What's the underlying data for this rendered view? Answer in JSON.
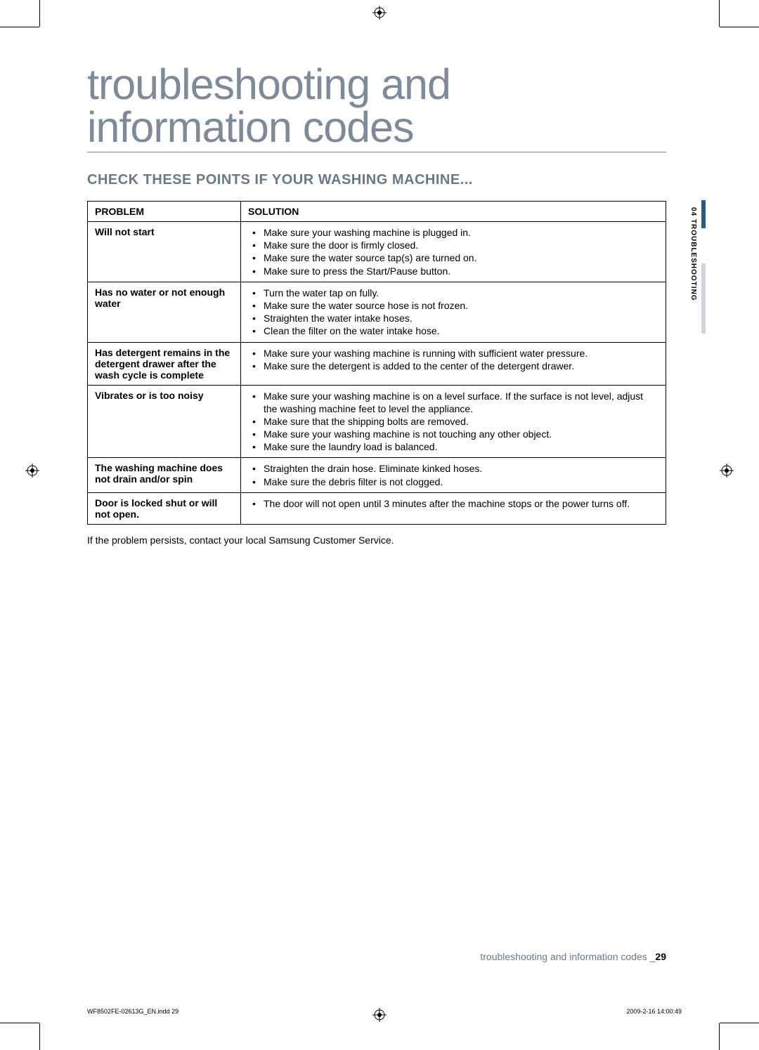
{
  "title_line1": "troubleshooting and",
  "title_line2": "information codes",
  "heading": "CHECK THESE POINTS IF YOUR WASHING MACHINE...",
  "table": {
    "col_problem": "PROBLEM",
    "col_solution": "SOLUTION",
    "rows": [
      {
        "problem": "Will not start",
        "solutions": [
          "Make sure your washing machine is plugged in.",
          "Make sure the door is firmly closed.",
          "Make sure the water source tap(s) are turned on.",
          "Make sure to press the Start/Pause button."
        ]
      },
      {
        "problem": "Has no water or not enough water",
        "solutions": [
          "Turn the water tap on fully.",
          "Make sure the water source hose is not frozen.",
          "Straighten the water intake hoses.",
          "Clean the filter on the water intake hose."
        ]
      },
      {
        "problem": "Has detergent remains in the detergent drawer after the wash cycle is complete",
        "solutions": [
          "Make sure your washing machine is running with sufficient water pressure.",
          "Make sure the detergent is added to the center of the detergent drawer."
        ]
      },
      {
        "problem": "Vibrates or is too noisy",
        "solutions": [
          "Make sure your washing machine is on a level surface. If the surface is not level, adjust the washing machine feet to level the appliance.",
          "Make sure that the shipping bolts are removed.",
          "Make sure your washing machine is not touching any other object.",
          "Make sure the laundry load is balanced."
        ]
      },
      {
        "problem": "The washing machine does not drain and/or spin",
        "solutions": [
          "Straighten the drain hose. Eliminate kinked hoses.",
          "Make sure the debris filter is not clogged."
        ]
      },
      {
        "problem": "Door is locked shut or will not open.",
        "solutions": [
          "The door will not open until 3 minutes after the machine stops or the power turns off."
        ]
      }
    ]
  },
  "note": "If the problem persists, contact your local Samsung Customer Service.",
  "side_label": "04  TROUBLESHOOTING",
  "footer_text": "troubleshooting and information codes _",
  "footer_page": "29",
  "print_left": "WF8502FE-02613G_EN.indd   29",
  "print_right": "2009-2-16   14:00:49",
  "colors": {
    "heading_gray": "#7d8a9a",
    "subhead_gray": "#6b7888",
    "tab_dark": "#2b5a82",
    "tab_light": "#cfd5dc"
  }
}
